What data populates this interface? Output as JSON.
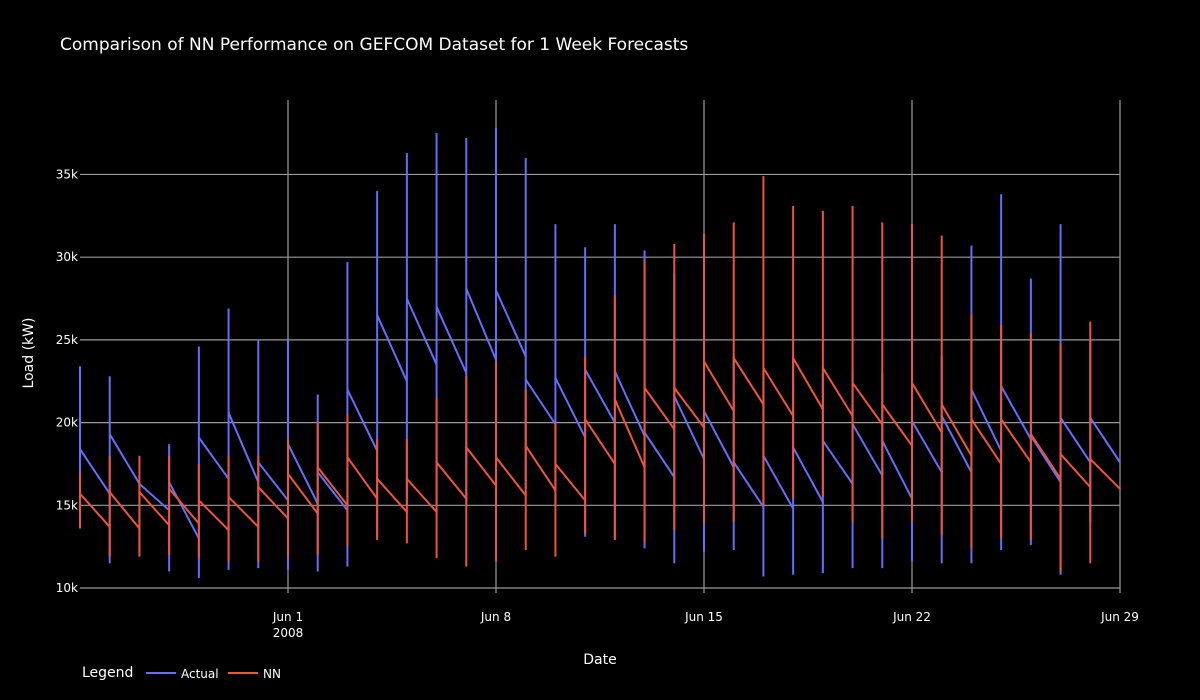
{
  "chart_data": {
    "type": "line",
    "title": "Comparison of NN Performance on GEFCOM Dataset for 1 Week Forecasts",
    "xlabel": "Date",
    "ylabel": "Load (kW)",
    "x_range": [
      "2008-05-25",
      "2008-06-29"
    ],
    "ylim": [
      9700,
      39500
    ],
    "x_ticks": [
      {
        "date": "2008-06-01",
        "label": "Jun 1",
        "sublabel": "2008"
      },
      {
        "date": "2008-06-08",
        "label": "Jun 8",
        "sublabel": ""
      },
      {
        "date": "2008-06-15",
        "label": "Jun 15",
        "sublabel": ""
      },
      {
        "date": "2008-06-22",
        "label": "Jun 22",
        "sublabel": ""
      },
      {
        "date": "2008-06-29",
        "label": "Jun 29",
        "sublabel": ""
      }
    ],
    "y_ticks": [
      {
        "value": 10000,
        "label": "10k"
      },
      {
        "value": 15000,
        "label": "15k"
      },
      {
        "value": 20000,
        "label": "20k"
      },
      {
        "value": 25000,
        "label": "25k"
      },
      {
        "value": 30000,
        "label": "30k"
      },
      {
        "value": 35000,
        "label": "35k"
      }
    ],
    "grid": true,
    "legend_title": "Legend",
    "legend_position": "bottom-left",
    "series": [
      {
        "name": "Actual",
        "color": "#636efa",
        "segments": [
          {
            "date": "2008-05-25",
            "start": 18400,
            "end": 15700,
            "max": 23400,
            "min": 15500
          },
          {
            "date": "2008-05-26",
            "start": 19300,
            "end": 16300,
            "max": 22800,
            "min": 11500
          },
          {
            "date": "2008-05-27",
            "start": 16300,
            "end": 14700,
            "max": 16300,
            "min": 12200
          },
          {
            "date": "2008-05-28",
            "start": 16400,
            "end": 13000,
            "max": 18700,
            "min": 11000
          },
          {
            "date": "2008-05-29",
            "start": 19100,
            "end": 16600,
            "max": 24600,
            "min": 10600
          },
          {
            "date": "2008-05-30",
            "start": 20600,
            "end": 16400,
            "max": 26900,
            "min": 11100
          },
          {
            "date": "2008-05-31",
            "start": 17600,
            "end": 15300,
            "max": 25000,
            "min": 11200
          },
          {
            "date": "2008-06-01",
            "start": 18700,
            "end": 15100,
            "max": 25000,
            "min": 11100
          },
          {
            "date": "2008-06-02",
            "start": 17000,
            "end": 14700,
            "max": 21700,
            "min": 11000
          },
          {
            "date": "2008-06-03",
            "start": 22000,
            "end": 18300,
            "max": 29700,
            "min": 11300
          },
          {
            "date": "2008-06-04",
            "start": 26500,
            "end": 22500,
            "max": 34000,
            "min": 13000
          },
          {
            "date": "2008-06-05",
            "start": 27500,
            "end": 23500,
            "max": 36300,
            "min": 15000
          },
          {
            "date": "2008-06-06",
            "start": 27000,
            "end": 23000,
            "max": 37500,
            "min": 15000
          },
          {
            "date": "2008-06-07",
            "start": 28100,
            "end": 23800,
            "max": 37200,
            "min": 15000
          },
          {
            "date": "2008-06-08",
            "start": 28000,
            "end": 24000,
            "max": 37800,
            "min": 16000
          },
          {
            "date": "2008-06-09",
            "start": 22600,
            "end": 19900,
            "max": 36000,
            "min": 16000
          },
          {
            "date": "2008-06-10",
            "start": 22700,
            "end": 19100,
            "max": 32000,
            "min": 15000
          },
          {
            "date": "2008-06-11",
            "start": 23200,
            "end": 20000,
            "max": 30600,
            "min": 13100
          },
          {
            "date": "2008-06-12",
            "start": 23100,
            "end": 19200,
            "max": 32000,
            "min": 13000
          },
          {
            "date": "2008-06-13",
            "start": 19400,
            "end": 16700,
            "max": 30400,
            "min": 12400
          },
          {
            "date": "2008-06-14",
            "start": 21600,
            "end": 17800,
            "max": 29000,
            "min": 11500
          },
          {
            "date": "2008-06-15",
            "start": 20700,
            "end": 17300,
            "max": 26000,
            "min": 12200
          },
          {
            "date": "2008-06-16",
            "start": 17600,
            "end": 14900,
            "max": 24000,
            "min": 12300
          },
          {
            "date": "2008-06-17",
            "start": 18000,
            "end": 14800,
            "max": 23000,
            "min": 10700
          },
          {
            "date": "2008-06-18",
            "start": 18500,
            "end": 15200,
            "max": 24000,
            "min": 10800
          },
          {
            "date": "2008-06-19",
            "start": 18900,
            "end": 16300,
            "max": 23000,
            "min": 10900
          },
          {
            "date": "2008-06-20",
            "start": 19900,
            "end": 16800,
            "max": 23000,
            "min": 11200
          },
          {
            "date": "2008-06-21",
            "start": 18900,
            "end": 15400,
            "max": 23000,
            "min": 11200
          },
          {
            "date": "2008-06-22",
            "start": 20100,
            "end": 17000,
            "max": 24000,
            "min": 11600
          },
          {
            "date": "2008-06-23",
            "start": 20400,
            "end": 17000,
            "max": 24000,
            "min": 11500
          },
          {
            "date": "2008-06-24",
            "start": 22000,
            "end": 18300,
            "max": 30700,
            "min": 11500
          },
          {
            "date": "2008-06-25",
            "start": 22200,
            "end": 19000,
            "max": 33800,
            "min": 12300
          },
          {
            "date": "2008-06-26",
            "start": 19200,
            "end": 16400,
            "max": 28700,
            "min": 12600
          },
          {
            "date": "2008-06-27",
            "start": 20300,
            "end": 17600,
            "max": 32000,
            "min": 10800
          },
          {
            "date": "2008-06-28",
            "start": 20300,
            "end": 17600,
            "max": 25000,
            "min": 14000
          }
        ]
      },
      {
        "name": "NN",
        "color": "#ef553b",
        "segments": [
          {
            "date": "2008-05-25",
            "start": 15700,
            "end": 13700,
            "max": 17000,
            "min": 13600
          },
          {
            "date": "2008-05-26",
            "start": 15800,
            "end": 13600,
            "max": 18000,
            "min": 11900
          },
          {
            "date": "2008-05-27",
            "start": 15800,
            "end": 13800,
            "max": 18000,
            "min": 11900
          },
          {
            "date": "2008-05-28",
            "start": 16000,
            "end": 13900,
            "max": 18000,
            "min": 12000
          },
          {
            "date": "2008-05-29",
            "start": 15300,
            "end": 13500,
            "max": 17500,
            "min": 11800
          },
          {
            "date": "2008-05-30",
            "start": 15500,
            "end": 13700,
            "max": 18000,
            "min": 11600
          },
          {
            "date": "2008-05-31",
            "start": 16100,
            "end": 14200,
            "max": 18000,
            "min": 11600
          },
          {
            "date": "2008-06-01",
            "start": 16900,
            "end": 14500,
            "max": 19000,
            "min": 11900
          },
          {
            "date": "2008-06-02",
            "start": 17300,
            "end": 15000,
            "max": 20000,
            "min": 12000
          },
          {
            "date": "2008-06-03",
            "start": 17900,
            "end": 15400,
            "max": 20500,
            "min": 12500
          },
          {
            "date": "2008-06-04",
            "start": 16600,
            "end": 14600,
            "max": 19000,
            "min": 12900
          },
          {
            "date": "2008-06-05",
            "start": 16600,
            "end": 14600,
            "max": 19000,
            "min": 12700
          },
          {
            "date": "2008-06-06",
            "start": 17600,
            "end": 15400,
            "max": 21500,
            "min": 11800
          },
          {
            "date": "2008-06-07",
            "start": 18500,
            "end": 16200,
            "max": 22800,
            "min": 11300
          },
          {
            "date": "2008-06-08",
            "start": 17900,
            "end": 15600,
            "max": 23700,
            "min": 11600
          },
          {
            "date": "2008-06-09",
            "start": 18600,
            "end": 15900,
            "max": 22000,
            "min": 12300
          },
          {
            "date": "2008-06-10",
            "start": 17500,
            "end": 15300,
            "max": 20000,
            "min": 11900
          },
          {
            "date": "2008-06-11",
            "start": 20200,
            "end": 17500,
            "max": 24000,
            "min": 13300
          },
          {
            "date": "2008-06-12",
            "start": 21400,
            "end": 17300,
            "max": 27700,
            "min": 12900
          },
          {
            "date": "2008-06-13",
            "start": 22100,
            "end": 19600,
            "max": 29800,
            "min": 12800
          },
          {
            "date": "2008-06-14",
            "start": 22100,
            "end": 19700,
            "max": 30800,
            "min": 13500
          },
          {
            "date": "2008-06-15",
            "start": 23700,
            "end": 20700,
            "max": 31400,
            "min": 13900
          },
          {
            "date": "2008-06-16",
            "start": 23900,
            "end": 21100,
            "max": 32100,
            "min": 14000
          },
          {
            "date": "2008-06-17",
            "start": 23300,
            "end": 20400,
            "max": 34900,
            "min": 15000
          },
          {
            "date": "2008-06-18",
            "start": 23900,
            "end": 20800,
            "max": 33100,
            "min": 15400
          },
          {
            "date": "2008-06-19",
            "start": 23300,
            "end": 20400,
            "max": 32800,
            "min": 15500
          },
          {
            "date": "2008-06-20",
            "start": 22400,
            "end": 19900,
            "max": 33100,
            "min": 14000
          },
          {
            "date": "2008-06-21",
            "start": 21100,
            "end": 18600,
            "max": 32100,
            "min": 13000
          },
          {
            "date": "2008-06-22",
            "start": 22400,
            "end": 19400,
            "max": 32000,
            "min": 14000
          },
          {
            "date": "2008-06-23",
            "start": 21100,
            "end": 18000,
            "max": 31300,
            "min": 13200
          },
          {
            "date": "2008-06-24",
            "start": 20200,
            "end": 17500,
            "max": 26500,
            "min": 12400
          },
          {
            "date": "2008-06-25",
            "start": 20200,
            "end": 17600,
            "max": 25900,
            "min": 13000
          },
          {
            "date": "2008-06-26",
            "start": 19300,
            "end": 16600,
            "max": 25400,
            "min": 12900
          },
          {
            "date": "2008-06-27",
            "start": 18100,
            "end": 16100,
            "max": 24800,
            "min": 11000
          },
          {
            "date": "2008-06-28",
            "start": 17800,
            "end": 16000,
            "max": 26100,
            "min": 11500
          }
        ]
      }
    ]
  }
}
